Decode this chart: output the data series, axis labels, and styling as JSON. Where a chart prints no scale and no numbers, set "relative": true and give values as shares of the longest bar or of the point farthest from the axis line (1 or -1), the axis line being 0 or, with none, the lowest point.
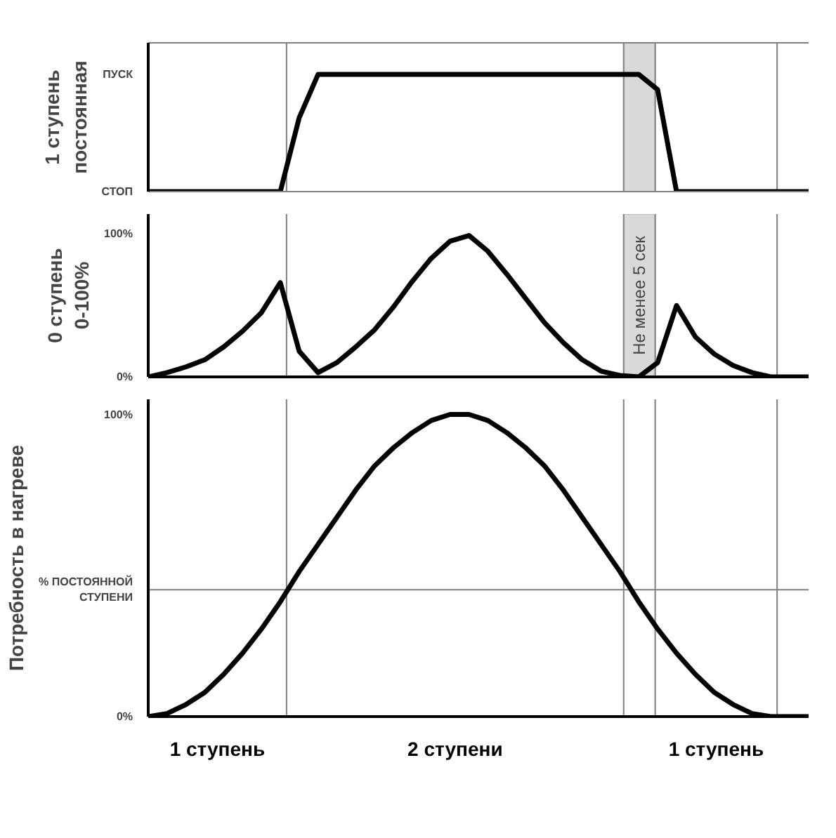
{
  "chart_data": [
    {
      "type": "line",
      "ylabel": "1 ступень\nпостоянная",
      "relative": true,
      "categories": [
        null,
        null,
        null,
        null,
        null,
        null,
        null,
        null,
        null,
        null,
        null,
        null,
        null,
        null,
        null,
        null,
        null,
        null,
        null,
        null,
        null,
        null,
        null,
        null,
        null,
        null,
        null,
        null,
        null,
        null,
        null,
        null,
        null,
        null,
        null,
        null
      ],
      "series": [
        {
          "color": "#000000",
          "values": [
            0,
            0,
            0,
            0,
            0,
            0,
            0,
            0,
            0.63,
            1,
            1,
            1,
            1,
            1,
            1,
            1,
            1,
            1,
            1,
            1,
            1,
            1,
            1,
            1,
            1,
            1,
            1,
            0.87,
            0,
            0,
            0,
            0,
            0,
            0,
            0,
            0
          ]
        }
      ],
      "annotations": [
        "СТОП",
        "ПУСК"
      ]
    },
    {
      "type": "line",
      "ylabel": "0 ступень\n0-100%",
      "categories": [
        null,
        null,
        null,
        null,
        null,
        null,
        null,
        null,
        null,
        null,
        null,
        null,
        null,
        null,
        null,
        null,
        null,
        null,
        null,
        null,
        null,
        null,
        null,
        null,
        null,
        null,
        null,
        null,
        null,
        null,
        null,
        null,
        null,
        null,
        null,
        null
      ],
      "series": [
        {
          "color": "#000000",
          "values": [
            0,
            3,
            7,
            12,
            21,
            32,
            45,
            66,
            18,
            3,
            10,
            21,
            33,
            49,
            67,
            83,
            95,
            99,
            88,
            72,
            55,
            38,
            24,
            12,
            4,
            1,
            0,
            10,
            50,
            28,
            16,
            8,
            3,
            0,
            0,
            0
          ]
        }
      ],
      "ylim": [
        0,
        114
      ],
      "yticks": [
        {
          "value": 0,
          "label": "0%"
        },
        {
          "value": 100,
          "label": "100%"
        }
      ],
      "tick_labels": "y",
      "annotations": [
        "Не менее 5 сек"
      ]
    },
    {
      "type": "line",
      "ylabel": "Потребность в нагреве",
      "categories": [
        null,
        null,
        null,
        null,
        null,
        null,
        null,
        null,
        null,
        null,
        null,
        null,
        null,
        null,
        null,
        null,
        null,
        null,
        null,
        null,
        null,
        null,
        null,
        null,
        null,
        null,
        null,
        null,
        null,
        null,
        null,
        null,
        null,
        null,
        null,
        null
      ],
      "series": [
        {
          "color": "#000000",
          "values": [
            0,
            1,
            4,
            8,
            14,
            21,
            29,
            38,
            48,
            57,
            66,
            75,
            83,
            89,
            94,
            98,
            100,
            100,
            98,
            94,
            89,
            83,
            75,
            66,
            57,
            48,
            38,
            29,
            21,
            14,
            8,
            4,
            1,
            0,
            0,
            0
          ]
        }
      ],
      "ylim": [
        0,
        105
      ],
      "yticks": [
        {
          "value": 0,
          "label": "0%"
        },
        {
          "value": 42,
          "label": "% ПОСТОЯННОЙ\nСТУПЕНИ"
        },
        {
          "value": 100,
          "label": "100%"
        }
      ],
      "tick_labels": "y",
      "ref_lines": [
        {
          "axis": "y",
          "value": 42,
          "color": "#808080"
        }
      ],
      "annotations": [
        "1 ступень",
        "2 ступени",
        "1 ступень"
      ]
    }
  ]
}
